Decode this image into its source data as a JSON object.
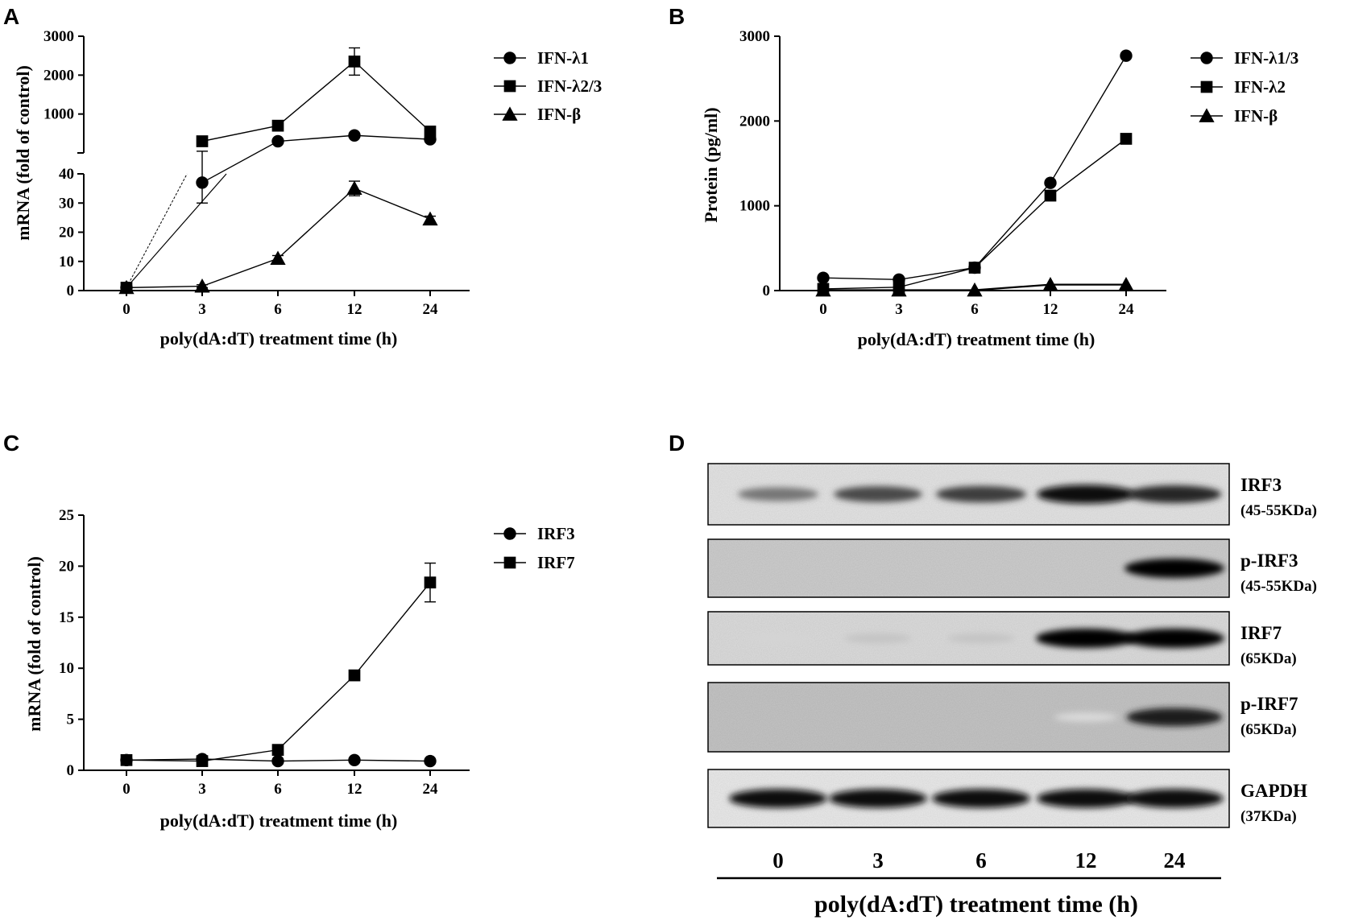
{
  "panel_letters": [
    "A",
    "B",
    "C",
    "D"
  ],
  "chart_data": [
    {
      "panel": "A",
      "type": "line",
      "x": [
        "0",
        "3",
        "6",
        "12",
        "24"
      ],
      "xlabel": "poly(dA:dT) treatment time (h)",
      "ylabel": "mRNA (fold of control)",
      "broken_axis": true,
      "lower_yticks": [
        "0",
        "10",
        "20",
        "30",
        "40"
      ],
      "upper_yticks": [
        "1000",
        "2000",
        "3000"
      ],
      "lower_ylim": [
        0,
        40
      ],
      "upper_ylim": [
        0,
        3000
      ],
      "legend_position": "top-right",
      "series": [
        {
          "name": "IFN-λ1",
          "marker": "circle",
          "values": [
            1,
            37,
            300,
            450,
            350
          ],
          "errors": [
            0,
            7,
            30,
            40,
            40
          ]
        },
        {
          "name": "IFN-λ2/3",
          "marker": "square",
          "values": [
            1,
            300,
            700,
            2350,
            550
          ],
          "errors": [
            0,
            20,
            80,
            350,
            130
          ]
        },
        {
          "name": "IFN-β",
          "marker": "triangle",
          "values": [
            1,
            1.5,
            11,
            35,
            24.5
          ],
          "errors": [
            0,
            0.5,
            1,
            2.5,
            1
          ]
        }
      ]
    },
    {
      "panel": "B",
      "type": "line",
      "x": [
        "0",
        "3",
        "6",
        "12",
        "24"
      ],
      "xlabel": "poly(dA:dT) treatment time (h)",
      "ylabel": "Protein (pg/ml)",
      "yticks": [
        "0",
        "1000",
        "2000",
        "3000"
      ],
      "ylim": [
        0,
        3000
      ],
      "legend_position": "top-right",
      "series": [
        {
          "name": "IFN-λ1/3",
          "marker": "circle",
          "values": [
            150,
            130,
            270,
            1270,
            2770
          ]
        },
        {
          "name": "IFN-λ2",
          "marker": "square",
          "values": [
            20,
            40,
            270,
            1120,
            1790
          ]
        },
        {
          "name": "IFN-β",
          "marker": "triangle",
          "values": [
            5,
            5,
            5,
            70,
            70
          ]
        }
      ]
    },
    {
      "panel": "C",
      "type": "line",
      "x": [
        "0",
        "3",
        "6",
        "12",
        "24"
      ],
      "xlabel": "poly(dA:dT) treatment time (h)",
      "ylabel": "mRNA (fold of control)",
      "yticks": [
        "0",
        "5",
        "10",
        "15",
        "20",
        "25"
      ],
      "ylim": [
        0,
        25
      ],
      "legend_position": "top-right",
      "series": [
        {
          "name": "IRF3",
          "marker": "circle",
          "values": [
            1,
            1.1,
            0.9,
            1.0,
            0.9
          ],
          "errors": [
            0,
            0.1,
            0.05,
            0.1,
            0.1
          ]
        },
        {
          "name": "IRF7",
          "marker": "square",
          "values": [
            1,
            0.9,
            2.0,
            9.3,
            18.4
          ],
          "errors": [
            0,
            0.1,
            0.1,
            0.5,
            1.9
          ]
        }
      ]
    }
  ],
  "blot": {
    "panel": "D",
    "lanes": [
      "0",
      "3",
      "6",
      "12",
      "24"
    ],
    "xlabel": "poly(dA:dT) treatment time (h)",
    "rows": [
      {
        "name": "IRF3",
        "size": "(45-55KDa)",
        "intensities": [
          0.5,
          0.7,
          0.75,
          0.95,
          0.85
        ]
      },
      {
        "name": "p-IRF3",
        "size": "(45-55KDa)",
        "intensities": [
          0,
          0,
          0,
          0,
          1.0
        ]
      },
      {
        "name": "IRF7",
        "size": "(65KDa)",
        "intensities": [
          0.08,
          0.15,
          0.15,
          1.0,
          1.0
        ]
      },
      {
        "name": "p-IRF7",
        "size": "(65KDa)",
        "intensities": [
          0,
          0,
          0,
          0.05,
          0.9
        ]
      },
      {
        "name": "GAPDH",
        "size": "(37KDa)",
        "intensities": [
          0.95,
          0.95,
          0.95,
          0.95,
          0.95
        ]
      }
    ]
  }
}
